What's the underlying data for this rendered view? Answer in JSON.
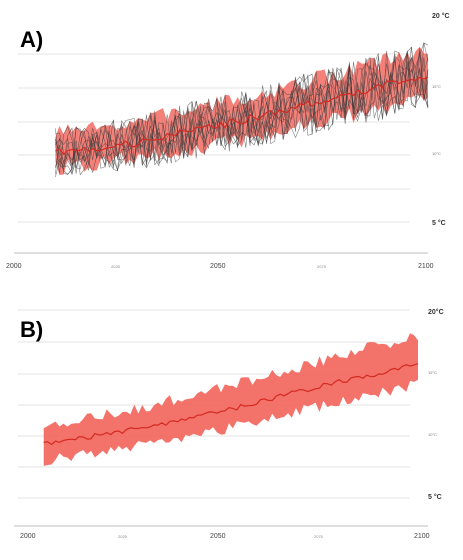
{
  "colors": {
    "band_a": "#e8453b",
    "band_b": "#f58a82",
    "mean": "#d42a22",
    "members": "#3c3c3c"
  },
  "chart_data": [
    {
      "panel_label": "A)",
      "type": "line",
      "x_range": [
        2000,
        2100
      ],
      "y_range": [
        5,
        20
      ],
      "y_labels": {
        "top": "20 °C",
        "bottom": "5 °C",
        "upper_mid": "15°C",
        "lower_mid": "10°C"
      },
      "x_tick_labels": {
        "start": "2000",
        "quarter": "2025",
        "mid": "2050",
        "three_quarter": "2075",
        "end": "2100"
      },
      "grid": true,
      "legend": "none",
      "ensemble_members": 10,
      "series": [
        {
          "x": [
            2010,
            2020,
            2030,
            2040,
            2050,
            2060,
            2070,
            2080,
            2090,
            2100
          ],
          "mean": [
            10.2,
            10.5,
            10.9,
            11.6,
            12.2,
            12.9,
            13.7,
            14.4,
            15.2,
            15.9
          ],
          "lower": [
            9.0,
            9.3,
            9.7,
            10.2,
            10.8,
            11.4,
            12.1,
            12.8,
            13.5,
            14.3
          ],
          "upper": [
            11.6,
            11.9,
            12.5,
            13.2,
            13.8,
            14.5,
            15.4,
            16.2,
            17.0,
            17.7
          ]
        }
      ]
    },
    {
      "panel_label": "B)",
      "type": "line",
      "x_range": [
        2000,
        2100
      ],
      "y_range": [
        5,
        20
      ],
      "y_labels": {
        "top": "20°C",
        "bottom": "5 °C",
        "upper_mid": "15°C",
        "lower_mid": "10°C"
      },
      "x_tick_labels": {
        "start": "2000",
        "quarter": "2025",
        "mid": "2050",
        "three_quarter": "2075",
        "end": "2100"
      },
      "grid": true,
      "legend": "none",
      "series": [
        {
          "x": [
            2005,
            2015,
            2025,
            2035,
            2045,
            2055,
            2065,
            2075,
            2085,
            2095,
            2100
          ],
          "mean": [
            9.3,
            9.8,
            10.3,
            10.9,
            11.6,
            12.3,
            13.1,
            13.9,
            14.6,
            15.3,
            15.9
          ],
          "lower": [
            8.0,
            8.4,
            8.9,
            9.5,
            10.1,
            10.8,
            11.5,
            12.3,
            13.0,
            13.7,
            14.2
          ],
          "upper": [
            10.8,
            11.3,
            11.9,
            12.6,
            13.4,
            14.2,
            15.0,
            15.9,
            16.8,
            17.5,
            17.9
          ]
        }
      ]
    }
  ]
}
